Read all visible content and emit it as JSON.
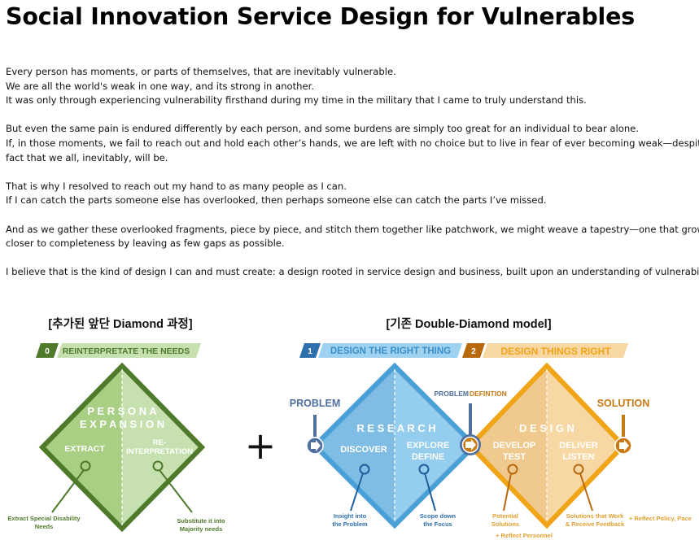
{
  "page": {
    "title": "Social Innovation Service Design for Vulnerables",
    "paragraphs": [
      [
        "Every person has moments, or parts of themselves, that are inevitably vulnerable.",
        "We are all the world's weak in one way, and its strong in another.",
        "It was only through experiencing vulnerability firsthand during my time in the military that I came to truly understand this."
      ],
      [
        "But even the same pain is endured differently by each person, and some burdens are simply too great for an individual to bear alone.",
        "If, in those moments, we fail to reach out and hold each other’s hands, we are left with no choice but to live in fear of ever becoming weak—despite the",
        "fact that we all, inevitably, will be."
      ],
      [
        "That is why I resolved to reach out my hand to as many people as I can.",
        "If I can catch the parts someone else has overlooked, then perhaps someone else can catch the parts I’ve missed."
      ],
      [
        "And as we gather these overlooked fragments, piece by piece, and stitch them together like patchwork, we might weave a tapestry—one that grows eve",
        "closer to completeness by leaving as few gaps as possible."
      ],
      [
        "I believe that is the kind of design I can and must create: a design rooted in service design and business, built upon an understanding of vulnerability."
      ]
    ]
  },
  "figure": {
    "left_heading": "[추가된 앞단 Diamond 과정]",
    "right_heading": "[기존 Double-Diamond model]",
    "plus_sign": "+",
    "stage0": {
      "number": "0",
      "label": "REINTERPRETATE THE NEEDS"
    },
    "stage1": {
      "number": "1",
      "label": "DESIGN THE RIGHT THING"
    },
    "stage2": {
      "number": "2",
      "label": "DESIGN THINGS RIGHT"
    },
    "persona": {
      "line1": "P E R S O N A",
      "line2": "E X P A N S I O N",
      "extract": "EXTRACT",
      "reinterp1": "RE-",
      "reinterp2": "INTERPRETATION"
    },
    "research": {
      "title": "R E S E A R C H",
      "discover": "DISCOVER",
      "explore": "EXPLORE",
      "define": "DEFINE"
    },
    "design": {
      "title": "D E S I G N",
      "develop": "DEVELOP",
      "test": "TEST",
      "deliver": "DELIVER",
      "listen": "LISTEN"
    },
    "labels": {
      "problem": "PROBLEM",
      "problem_def_a": "PROBLEM",
      "problem_def_b": "DEFINTION",
      "solution": "SOLUTION"
    },
    "notes": {
      "extract_special_1": "Extract Special Disability",
      "extract_special_2": "Needs",
      "substitute_1": "Substitute it into",
      "substitute_2": "Majority needs",
      "insight_1": "Insight into",
      "insight_2": "the Problem",
      "scope_1": "Scope down",
      "scope_2": "the Focus",
      "potential_1": "Potential",
      "potential_2": "Solutions",
      "solutions_work_1": "Solutions that Work",
      "solutions_work_2": "& Receive Feedback",
      "reflect_policy": "+ Reflect Policy, Pace",
      "reflect_personnel": "+ Reflect Personnel"
    },
    "colors": {
      "green_dark": "#4f7a2c",
      "green_left": "#a8cf84",
      "green_right": "#c7e0af",
      "blue_border": "#4a9fd6",
      "blue_left": "#7fbde4",
      "blue_right": "#95cdee",
      "orange_border": "#f0a417",
      "orange_left": "#f0c98e",
      "orange_right": "#f7d8a4",
      "problem_blue": "#4f6fa0",
      "solution_orange": "#c77a12"
    }
  }
}
